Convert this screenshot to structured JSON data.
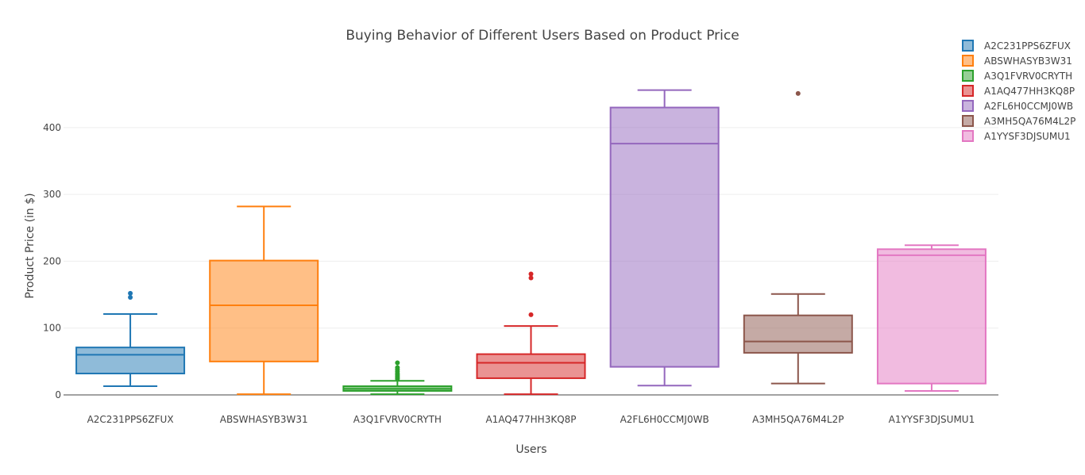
{
  "chart_data": {
    "type": "box",
    "title": "Buying Behavior of Different Users Based on Product Price",
    "xlabel": "Users",
    "ylabel": "Product Price (in $)",
    "ylim": [
      0,
      490
    ],
    "yticks": [
      0,
      100,
      200,
      300,
      400
    ],
    "grid": true,
    "legend_position": "top-right",
    "series": [
      {
        "name": "A2C231PPS6ZFUX",
        "color": "#1f77b4",
        "fill": "rgba(31,119,180,0.5)",
        "min": 13,
        "q1": 32,
        "median": 60,
        "q3": 71,
        "max": 121,
        "outliers": [
          146,
          152
        ]
      },
      {
        "name": "ABSWHASYB3W31",
        "color": "#ff7f0e",
        "fill": "rgba(255,127,14,0.5)",
        "min": 1,
        "q1": 50,
        "median": 134,
        "q3": 201,
        "max": 282,
        "outliers": []
      },
      {
        "name": "A3Q1FVRV0CRYTH",
        "color": "#2ca02c",
        "fill": "rgba(44,160,44,0.5)",
        "min": 1,
        "q1": 6,
        "median": 9,
        "q3": 13,
        "max": 21,
        "outliers": [
          24,
          26,
          28,
          30,
          32,
          35,
          38,
          41,
          48
        ]
      },
      {
        "name": "A1AQ477HH3KQ8P",
        "color": "#d62728",
        "fill": "rgba(214,39,40,0.5)",
        "min": 1,
        "q1": 25,
        "median": 48,
        "q3": 61,
        "max": 103,
        "outliers": [
          120,
          175,
          181
        ]
      },
      {
        "name": "A2FL6H0CCMJ0WB",
        "color": "#9467bd",
        "fill": "rgba(148,103,189,0.5)",
        "min": 14,
        "q1": 42,
        "median": 376,
        "q3": 430,
        "max": 456,
        "outliers": []
      },
      {
        "name": "A3MH5QA76M4L2P",
        "color": "#8c564b",
        "fill": "rgba(140,86,75,0.5)",
        "min": 17,
        "q1": 63,
        "median": 80,
        "q3": 119,
        "max": 151,
        "outliers": [
          451
        ]
      },
      {
        "name": "A1YYSF3DJSUMU1",
        "color": "#e377c2",
        "fill": "rgba(227,119,194,0.5)",
        "min": 6,
        "q1": 17,
        "median": 209,
        "q3": 218,
        "max": 224,
        "outliers": []
      }
    ]
  }
}
